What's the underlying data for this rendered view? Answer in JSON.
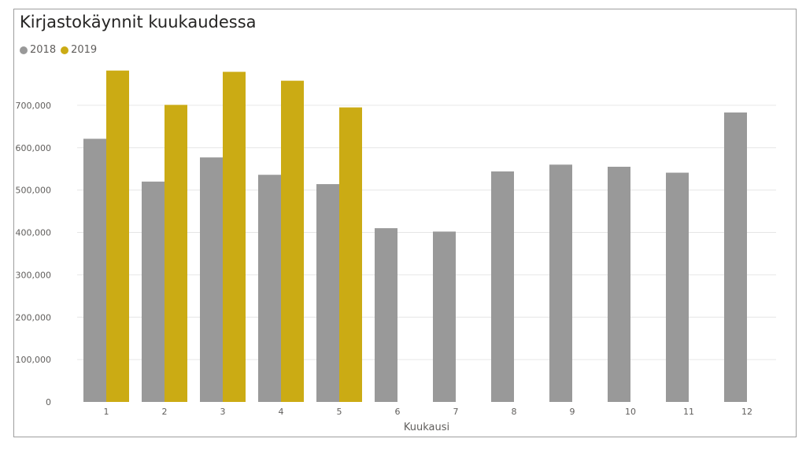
{
  "chart_data": {
    "type": "bar",
    "title": "Kirjastokäynnit kuukaudessa",
    "xlabel": "Kuukausi",
    "ylabel": "",
    "categories": [
      "1",
      "2",
      "3",
      "4",
      "5",
      "6",
      "7",
      "8",
      "9",
      "10",
      "11",
      "12"
    ],
    "series": [
      {
        "name": "2018",
        "color": "#999999",
        "values": [
          621000,
          520000,
          577000,
          536000,
          514000,
          410000,
          402000,
          544000,
          560000,
          555000,
          541000,
          683000
        ]
      },
      {
        "name": "2019",
        "color": "#cbab14",
        "values": [
          782000,
          701000,
          779000,
          758000,
          695000,
          null,
          null,
          null,
          null,
          null,
          null,
          null
        ]
      }
    ],
    "yticks": [
      0,
      100000,
      200000,
      300000,
      400000,
      500000,
      600000,
      700000
    ],
    "ytick_labels": [
      "0",
      "100,000",
      "200,000",
      "300,000",
      "400,000",
      "500,000",
      "600,000",
      "700,000"
    ],
    "ylim": [
      0,
      800000
    ],
    "grid": true,
    "legend_position": "top-left"
  }
}
